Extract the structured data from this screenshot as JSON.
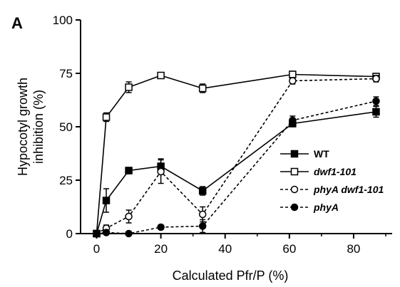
{
  "chart_data": {
    "type": "line",
    "panel_label": "A",
    "xlabel": "Calculated Pfr/P (%)",
    "ylabel_lines": [
      "Hypocotyl growth",
      "inhibition (%)"
    ],
    "xlim": [
      -5,
      92
    ],
    "ylim": [
      0,
      100
    ],
    "xticks": [
      0,
      20,
      40,
      60,
      80
    ],
    "yticks": [
      0,
      25,
      50,
      75,
      100
    ],
    "x": [
      0,
      3,
      10,
      20,
      33,
      61,
      87
    ],
    "grid": false,
    "legend_position": "right",
    "series": [
      {
        "name": "WT",
        "italic": false,
        "marker": "square",
        "filled": true,
        "dashed": false,
        "color": "#000000",
        "values": [
          0,
          15.5,
          29.5,
          31.5,
          20,
          51.5,
          57
        ],
        "errors": [
          0,
          5.5,
          1.5,
          3.5,
          2,
          1.5,
          2.5
        ]
      },
      {
        "name": "dwf1-101",
        "italic": true,
        "marker": "square",
        "filled": false,
        "dashed": false,
        "color": "#000000",
        "values": [
          0,
          54.5,
          68.5,
          74,
          68,
          74.5,
          73.5
        ],
        "errors": [
          0,
          2,
          2.5,
          1,
          2,
          1.5,
          1.5
        ]
      },
      {
        "name": "phyA dwf1-101",
        "italic": true,
        "marker": "circle",
        "filled": false,
        "dashed": true,
        "color": "#000000",
        "values": [
          0,
          2.5,
          8,
          29,
          9,
          71.5,
          72.5
        ],
        "errors": [
          0,
          1.5,
          3,
          5.5,
          3.5,
          1.5,
          1.5
        ]
      },
      {
        "name": "phyA",
        "italic": true,
        "marker": "circle",
        "filled": true,
        "dashed": true,
        "color": "#000000",
        "values": [
          0,
          0.5,
          0,
          3,
          3.5,
          53,
          62
        ],
        "errors": [
          0,
          0.5,
          0.3,
          1,
          3,
          2,
          2
        ]
      }
    ]
  }
}
